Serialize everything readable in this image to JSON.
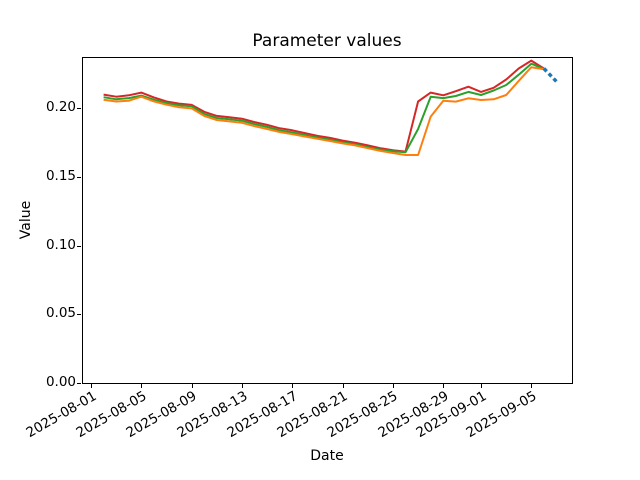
{
  "chart_data": {
    "type": "line",
    "title": "Parameter values",
    "xlabel": "Date",
    "ylabel": "Value",
    "grid": false,
    "legend_position": "none",
    "ylim": [
      0.0,
      0.2374
    ],
    "ytick_values": [
      0.0,
      0.05,
      0.1,
      0.15,
      0.2
    ],
    "ytick_labels": [
      "0.00",
      "0.05",
      "0.10",
      "0.15",
      "0.20"
    ],
    "xtick_labels": [
      "2025-08-01",
      "2025-08-05",
      "2025-08-09",
      "2025-08-13",
      "2025-08-17",
      "2025-08-21",
      "2025-08-25",
      "2025-08-29",
      "2025-09-01",
      "2025-09-05"
    ],
    "x": [
      "2025-08-02",
      "2025-08-03",
      "2025-08-04",
      "2025-08-05",
      "2025-08-06",
      "2025-08-07",
      "2025-08-08",
      "2025-08-09",
      "2025-08-10",
      "2025-08-11",
      "2025-08-12",
      "2025-08-13",
      "2025-08-14",
      "2025-08-15",
      "2025-08-16",
      "2025-08-17",
      "2025-08-18",
      "2025-08-19",
      "2025-08-20",
      "2025-08-21",
      "2025-08-22",
      "2025-08-23",
      "2025-08-24",
      "2025-08-25",
      "2025-08-26",
      "2025-08-27",
      "2025-08-28",
      "2025-08-29",
      "2025-08-30",
      "2025-08-31",
      "2025-09-01",
      "2025-09-02",
      "2025-09-03",
      "2025-09-04",
      "2025-09-05",
      "2025-09-06"
    ],
    "series": [
      {
        "name": "red",
        "color": "#d62728",
        "style": "solid",
        "linewidth": 2,
        "values": [
          0.21,
          0.2085,
          0.2095,
          0.2115,
          0.208,
          0.205,
          0.2035,
          0.2025,
          0.1975,
          0.1945,
          0.1935,
          0.1925,
          0.19,
          0.188,
          0.1855,
          0.184,
          0.182,
          0.18,
          0.1785,
          0.1765,
          0.175,
          0.173,
          0.171,
          0.1695,
          0.1685,
          0.205,
          0.2115,
          0.2095,
          0.2125,
          0.2158,
          0.212,
          0.215,
          0.221,
          0.229,
          0.2348,
          0.229
        ]
      },
      {
        "name": "green",
        "color": "#2ca02c",
        "style": "solid",
        "linewidth": 2,
        "values": [
          0.2081,
          0.2066,
          0.2075,
          0.2093,
          0.2063,
          0.2039,
          0.2022,
          0.2015,
          0.196,
          0.193,
          0.192,
          0.191,
          0.1885,
          0.1865,
          0.184,
          0.1825,
          0.1805,
          0.1788,
          0.1772,
          0.1752,
          0.1738,
          0.1718,
          0.17,
          0.1688,
          0.168,
          0.185,
          0.2085,
          0.2075,
          0.209,
          0.212,
          0.2097,
          0.213,
          0.217,
          0.2245,
          0.2325,
          0.2287
        ]
      },
      {
        "name": "orange",
        "color": "#ff7f0e",
        "style": "solid",
        "linewidth": 2,
        "values": [
          0.2062,
          0.205,
          0.2056,
          0.2085,
          0.2051,
          0.2027,
          0.2008,
          0.2,
          0.1945,
          0.1915,
          0.1905,
          0.1895,
          0.187,
          0.185,
          0.1828,
          0.1812,
          0.1795,
          0.1778,
          0.1762,
          0.1745,
          0.173,
          0.171,
          0.169,
          0.1675,
          0.166,
          0.166,
          0.194,
          0.2055,
          0.2049,
          0.2073,
          0.2061,
          0.2066,
          0.2097,
          0.22,
          0.23,
          0.2285
        ]
      },
      {
        "name": "blue-dashed",
        "color": "#1f77b4",
        "style": "dashed",
        "linewidth": 3.5,
        "x": [
          "2025-09-06",
          "2025-09-07"
        ],
        "values": [
          0.229,
          0.2195
        ]
      }
    ]
  }
}
